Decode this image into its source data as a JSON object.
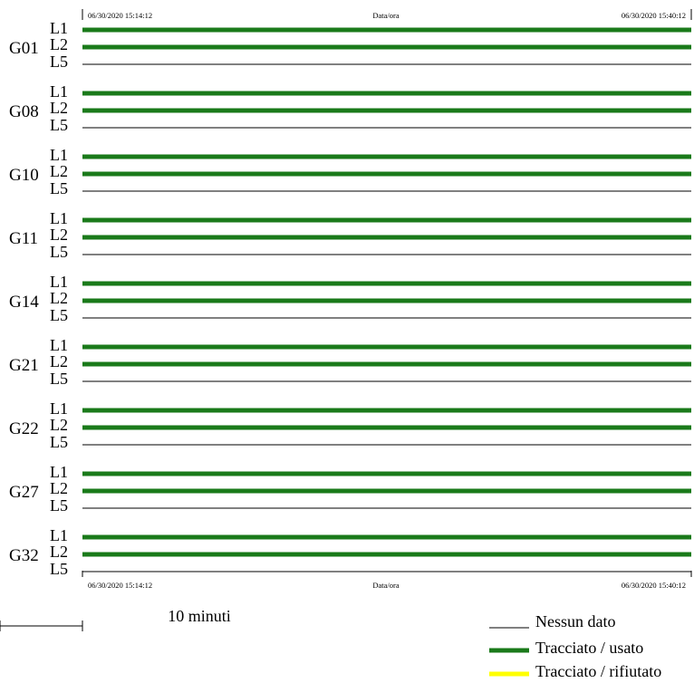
{
  "chart_data": {
    "type": "timeline",
    "time_axis": {
      "start": "06/30/2020 15:14:12",
      "end": "06/30/2020 15:40:12",
      "label": "Data/ora"
    },
    "satellites": [
      {
        "id": "G01",
        "signals": [
          {
            "name": "L1",
            "status": "used"
          },
          {
            "name": "L2",
            "status": "used"
          },
          {
            "name": "L5",
            "status": "no_data"
          }
        ]
      },
      {
        "id": "G08",
        "signals": [
          {
            "name": "L1",
            "status": "used"
          },
          {
            "name": "L2",
            "status": "used"
          },
          {
            "name": "L5",
            "status": "no_data"
          }
        ]
      },
      {
        "id": "G10",
        "signals": [
          {
            "name": "L1",
            "status": "used"
          },
          {
            "name": "L2",
            "status": "used"
          },
          {
            "name": "L5",
            "status": "no_data"
          }
        ]
      },
      {
        "id": "G11",
        "signals": [
          {
            "name": "L1",
            "status": "used"
          },
          {
            "name": "L2",
            "status": "used"
          },
          {
            "name": "L5",
            "status": "no_data"
          }
        ]
      },
      {
        "id": "G14",
        "signals": [
          {
            "name": "L1",
            "status": "used"
          },
          {
            "name": "L2",
            "status": "used"
          },
          {
            "name": "L5",
            "status": "no_data"
          }
        ]
      },
      {
        "id": "G21",
        "signals": [
          {
            "name": "L1",
            "status": "used"
          },
          {
            "name": "L2",
            "status": "used"
          },
          {
            "name": "L5",
            "status": "no_data"
          }
        ]
      },
      {
        "id": "G22",
        "signals": [
          {
            "name": "L1",
            "status": "used"
          },
          {
            "name": "L2",
            "status": "used"
          },
          {
            "name": "L5",
            "status": "no_data"
          }
        ]
      },
      {
        "id": "G27",
        "signals": [
          {
            "name": "L1",
            "status": "used"
          },
          {
            "name": "L2",
            "status": "used"
          },
          {
            "name": "L5",
            "status": "no_data"
          }
        ]
      },
      {
        "id": "G32",
        "signals": [
          {
            "name": "L1",
            "status": "used"
          },
          {
            "name": "L2",
            "status": "used"
          },
          {
            "name": "L5",
            "status": "no_data"
          }
        ]
      }
    ],
    "scale_bar": {
      "label": "10 minuti",
      "minutes": 10
    },
    "legend": [
      {
        "label": "Nessun dato",
        "status": "no_data",
        "color": "#000000"
      },
      {
        "label": "Tracciato / usato",
        "status": "used",
        "color": "#1a7a1a"
      },
      {
        "label": "Tracciato / rifiutato",
        "status": "rejected",
        "color": "#ffff00"
      }
    ]
  }
}
